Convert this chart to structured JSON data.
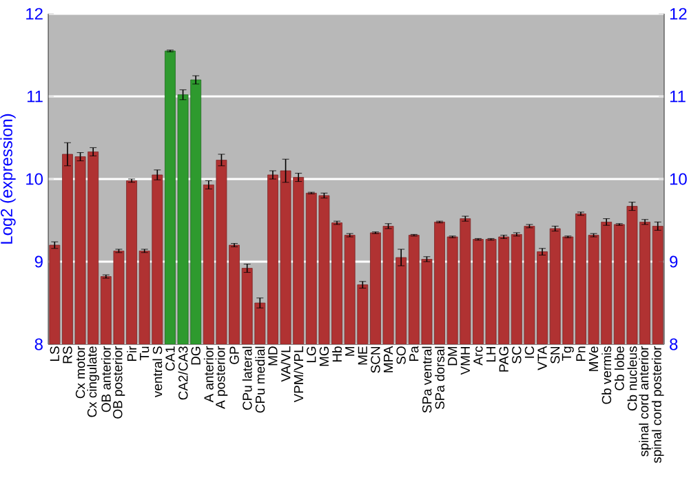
{
  "chart_data": {
    "type": "bar",
    "ylabel": "Log2 (expression)",
    "categories": [
      "LS",
      "RS",
      "Cx motor",
      "Cx cingulate",
      "OB anterior",
      "OB posterior",
      "Pir",
      "Tu",
      "ventral S",
      "CA1",
      "CA2/CA3",
      "DG",
      "A anterior",
      "A posterior",
      "GP",
      "CPu lateral",
      "CPu medial",
      "MD",
      "VA/VL",
      "VPM/VPL",
      "LG",
      "MG",
      "Hb",
      "M",
      "ME",
      "SCN",
      "MPA",
      "SO",
      "Pa",
      "SPa ventral",
      "SPa dorsal",
      "DM",
      "VMH",
      "Arc",
      "LH",
      "PAG",
      "SC",
      "IC",
      "VTA",
      "SN",
      "Tg",
      "Pn",
      "MVe",
      "Cb vermis",
      "Cb lobe",
      "Cb nucleus",
      "spinal cord anterior",
      "spinal cord posterior"
    ],
    "values": [
      9.2,
      10.3,
      10.27,
      10.33,
      8.82,
      9.13,
      9.98,
      9.13,
      10.05,
      11.55,
      11.02,
      11.2,
      9.93,
      10.23,
      9.2,
      8.92,
      8.5,
      10.05,
      10.1,
      10.02,
      9.83,
      9.8,
      9.47,
      9.32,
      8.72,
      9.35,
      9.43,
      9.05,
      9.32,
      9.03,
      9.48,
      9.3,
      9.52,
      9.27,
      9.27,
      9.3,
      9.33,
      9.43,
      9.12,
      9.4,
      9.3,
      9.58,
      9.32,
      9.48,
      9.45,
      9.67,
      9.48,
      9.43
    ],
    "errors": [
      0.04,
      0.14,
      0.05,
      0.05,
      0.02,
      0.02,
      0.02,
      0.02,
      0.06,
      0.01,
      0.06,
      0.05,
      0.05,
      0.07,
      0.02,
      0.05,
      0.06,
      0.05,
      0.14,
      0.05,
      0.01,
      0.03,
      0.02,
      0.02,
      0.04,
      0.01,
      0.03,
      0.1,
      0.01,
      0.03,
      0.01,
      0.01,
      0.03,
      0.01,
      0.01,
      0.02,
      0.02,
      0.02,
      0.04,
      0.03,
      0.01,
      0.02,
      0.02,
      0.04,
      0.01,
      0.05,
      0.03,
      0.05
    ],
    "colors": [
      "#b03232",
      "#b03232",
      "#b03232",
      "#b03232",
      "#b03232",
      "#b03232",
      "#b03232",
      "#b03232",
      "#b03232",
      "#2e9a2e",
      "#2e9a2e",
      "#2e9a2e",
      "#b03232",
      "#b03232",
      "#b03232",
      "#b03232",
      "#b03232",
      "#b03232",
      "#b03232",
      "#b03232",
      "#b03232",
      "#b03232",
      "#b03232",
      "#b03232",
      "#b03232",
      "#b03232",
      "#b03232",
      "#b03232",
      "#b03232",
      "#b03232",
      "#b03232",
      "#b03232",
      "#b03232",
      "#b03232",
      "#b03232",
      "#b03232",
      "#b03232",
      "#b03232",
      "#b03232",
      "#b03232",
      "#b03232",
      "#b03232",
      "#b03232",
      "#b03232",
      "#b03232",
      "#b03232",
      "#b03232",
      "#b03232"
    ],
    "ylim": [
      8,
      12
    ],
    "yticks": [
      8,
      9,
      10,
      11,
      12
    ],
    "y2lim": [
      8,
      12
    ],
    "y2ticks": [
      8,
      9,
      10,
      11,
      12
    ],
    "grid": "y"
  }
}
